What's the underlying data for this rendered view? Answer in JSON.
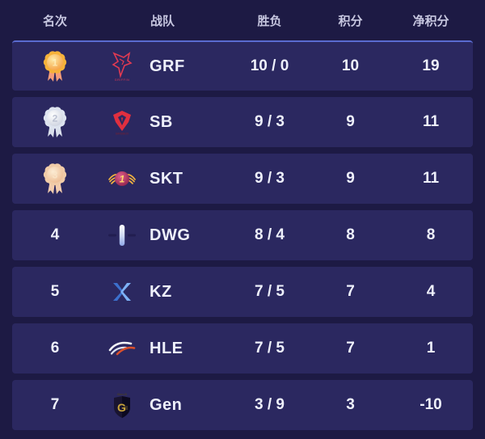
{
  "table": {
    "headers": {
      "rank": "名次",
      "team": "战队",
      "winloss": "胜负",
      "points": "积分",
      "net_points": "净积分"
    },
    "rows": [
      {
        "rank": "1",
        "medal": "gold",
        "icon": "grf-logo",
        "team": "GRF",
        "winloss": "10 / 0",
        "points": "10",
        "net": "19"
      },
      {
        "rank": "2",
        "medal": "silver",
        "icon": "sb-logo",
        "team": "SB",
        "winloss": "9 / 3",
        "points": "9",
        "net": "11"
      },
      {
        "rank": "3",
        "medal": "bronze",
        "icon": "skt-logo",
        "team": "SKT",
        "winloss": "9 / 3",
        "points": "9",
        "net": "11"
      },
      {
        "rank": "4",
        "medal": null,
        "icon": "dwg-logo",
        "team": "DWG",
        "winloss": "8 / 4",
        "points": "8",
        "net": "8"
      },
      {
        "rank": "5",
        "medal": null,
        "icon": "kz-logo",
        "team": "KZ",
        "winloss": "7 / 5",
        "points": "7",
        "net": "4"
      },
      {
        "rank": "6",
        "medal": null,
        "icon": "hle-logo",
        "team": "HLE",
        "winloss": "7 / 5",
        "points": "7",
        "net": "1"
      },
      {
        "rank": "7",
        "medal": null,
        "icon": "gen-logo",
        "team": "Gen",
        "winloss": "3 / 9",
        "points": "3",
        "net": "-10"
      }
    ]
  },
  "medals": {
    "gold": {
      "number": "1",
      "petal": "#f6b23a",
      "center_light": "#fdeaa6",
      "center_dark": "#f59b3c",
      "ribbon": "#f59d7a",
      "number_color": "#fff3c4"
    },
    "silver": {
      "number": "2",
      "petal": "#dde3ef",
      "center_light": "#ffffff",
      "center_dark": "#c9cfdd",
      "ribbon": "#d9dfeb",
      "number_color": "#aab1c6"
    },
    "bronze": {
      "number": "3",
      "petal": "#f0cba8",
      "center_light": "#fcecd4",
      "center_dark": "#ecb98e",
      "ribbon": "#f2ccae",
      "number_color": "#fbe8cd"
    }
  },
  "colors": {
    "page_background": "#1d1a44",
    "row_background": "#2b2860",
    "first_row_top_border": "#5a6bd0",
    "header_text": "#c7c7e0",
    "row_text": "#eef0fb",
    "grf_red": "#e13a52",
    "sb_red": "#e02f3f",
    "skt_red": "#c73a68",
    "skt_gold": "#f0b240",
    "dwg_blue": "#8fa7e8",
    "kz_blue": "#3f7de0",
    "hle_white": "#f5f6fa",
    "hle_red": "#d94f2b",
    "gen_gold": "#c9a43c",
    "gen_black": "#191430"
  }
}
